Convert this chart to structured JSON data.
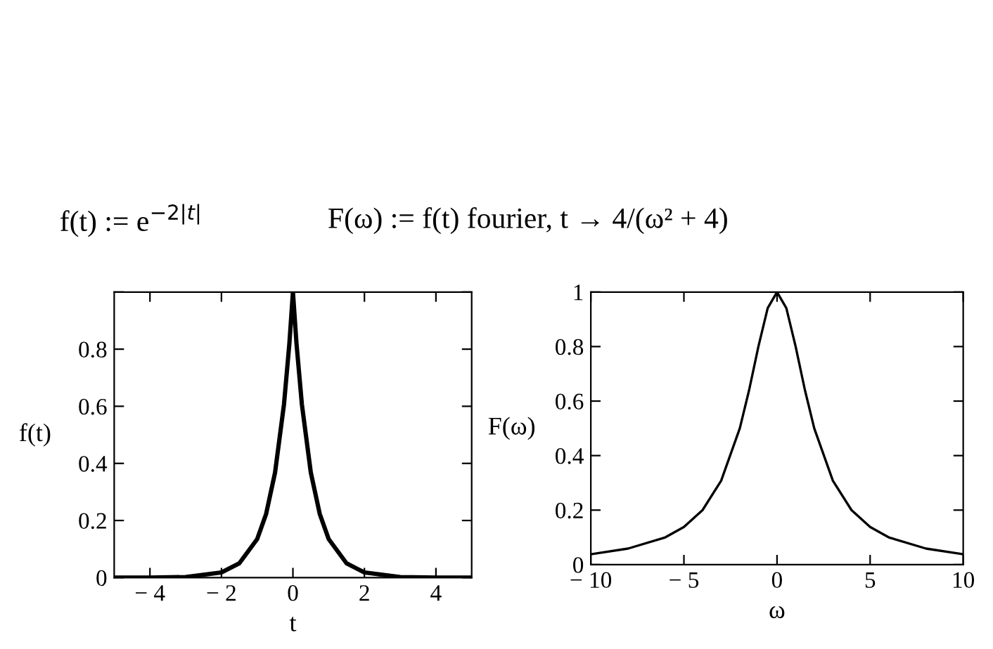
{
  "chart_data": [
    {
      "type": "line",
      "xlabel": "t",
      "ylabel": "f(t)",
      "annotations": [
        "f(t) := e$^{−2|t|}$",
        "F(ω) := f(t) fourier, t → 4/(ω² + 4)"
      ],
      "x": [
        -5,
        -4,
        -3,
        -2,
        -1.5,
        -1,
        -0.75,
        -0.5,
        -0.25,
        -0.1,
        0,
        0.1,
        0.25,
        0.5,
        0.75,
        1,
        1.5,
        2,
        3,
        4,
        5
      ],
      "series": [
        {
          "color": "#000000",
          "values": [
            0,
            0,
            0.002,
            0.018,
            0.05,
            0.135,
            0.223,
            0.368,
            0.607,
            0.819,
            1,
            0.819,
            0.607,
            0.368,
            0.223,
            0.135,
            0.05,
            0.018,
            0.002,
            0,
            0
          ]
        }
      ],
      "xlim": [
        -5,
        5
      ],
      "ylim": [
        0,
        1
      ],
      "xticks": [
        {
          "value": -4,
          "label": "− 4"
        },
        {
          "value": -2,
          "label": "− 2"
        },
        0,
        2,
        4
      ],
      "yticks": [
        0,
        0.2,
        0.4,
        0.6,
        0.8,
        {
          "value": 1,
          "label": null
        }
      ],
      "grid": false,
      "legend": false,
      "marker": "none",
      "line_style": "solid"
    },
    {
      "type": "line",
      "xlabel": "ω",
      "ylabel": "F(ω)",
      "x": [
        -10,
        -8,
        -6,
        -5,
        -4,
        -3,
        -2,
        -1.5,
        -1,
        -0.5,
        0,
        0.5,
        1,
        1.5,
        2,
        3,
        4,
        5,
        6,
        8,
        10
      ],
      "series": [
        {
          "color": "#000000",
          "values": [
            0.038,
            0.059,
            0.1,
            0.138,
            0.2,
            0.308,
            0.5,
            0.64,
            0.8,
            0.941,
            1,
            0.941,
            0.8,
            0.64,
            0.5,
            0.308,
            0.2,
            0.138,
            0.1,
            0.059,
            0.038
          ]
        }
      ],
      "xlim": [
        -10,
        10
      ],
      "ylim": [
        0,
        1
      ],
      "xticks": [
        {
          "value": -10,
          "label": "− 10"
        },
        {
          "value": -5,
          "label": "− 5"
        },
        0,
        5,
        10
      ],
      "yticks": [
        0,
        0.2,
        0.4,
        0.6,
        0.8,
        1
      ],
      "grid": false,
      "legend": false,
      "marker": "none",
      "line_style": "solid"
    }
  ]
}
